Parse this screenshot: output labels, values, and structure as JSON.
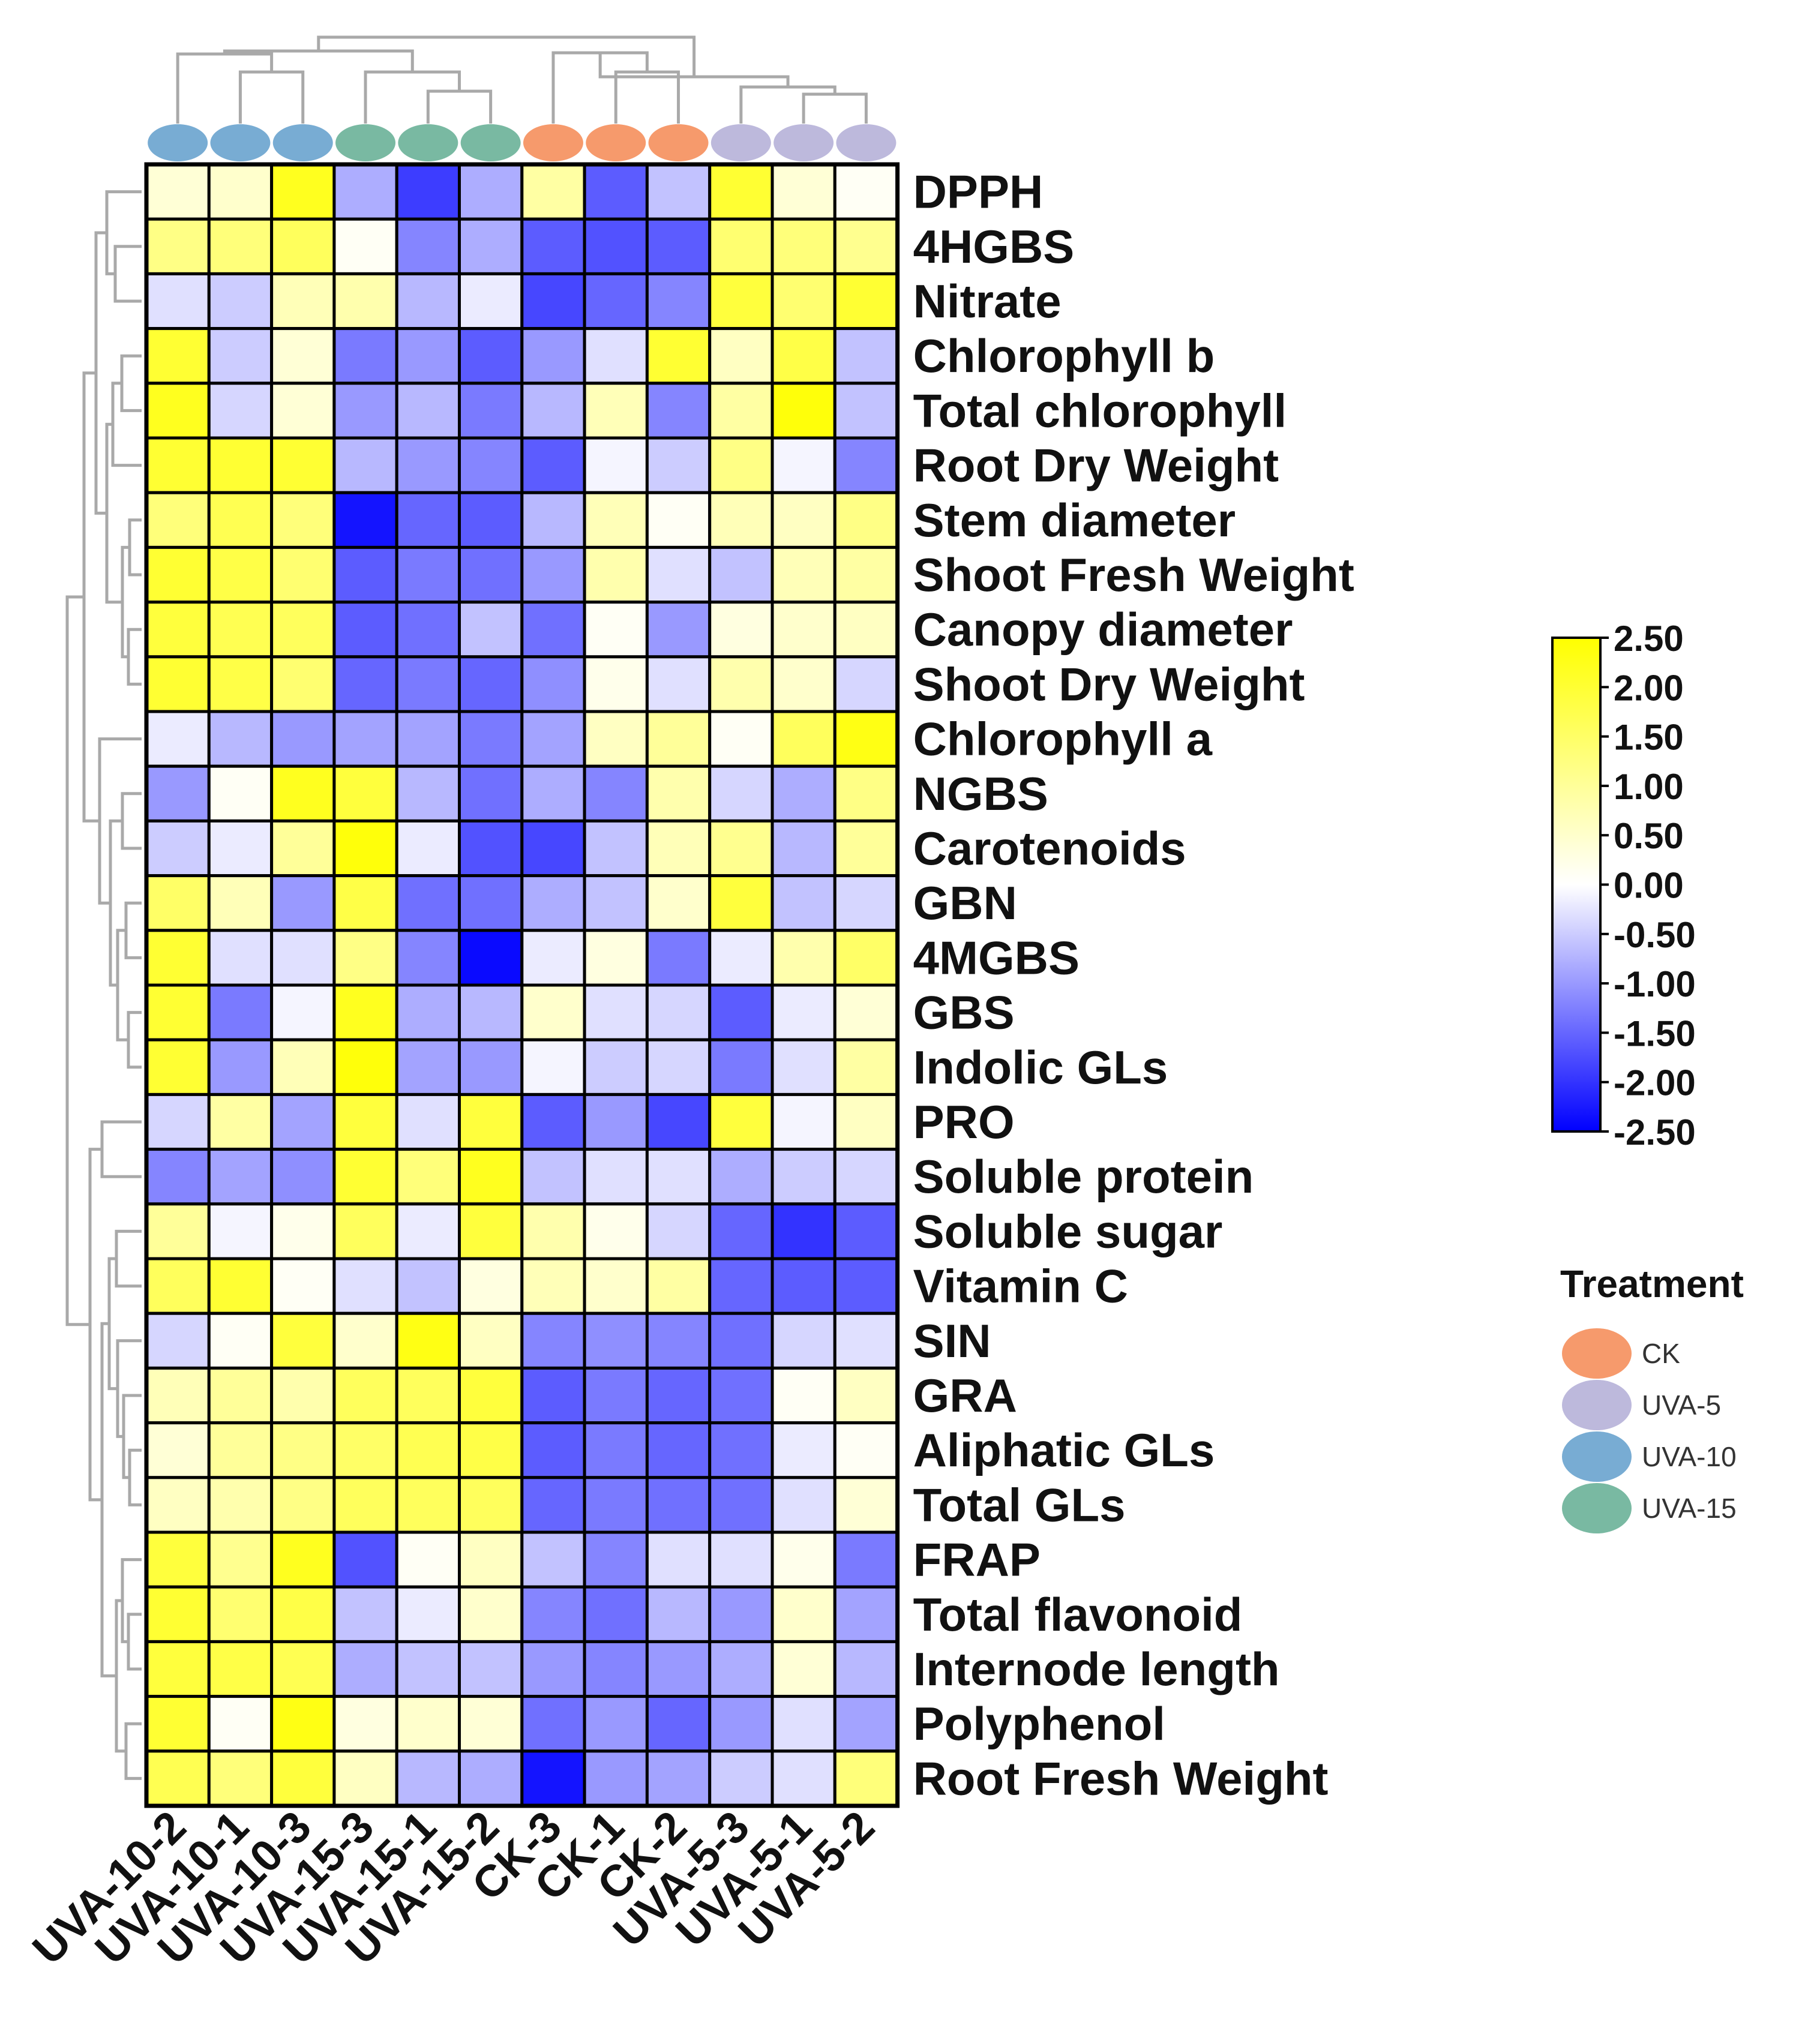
{
  "chart_data": {
    "type": "heatmap",
    "columns": [
      "UVA-10-2",
      "UVA-10-1",
      "UVA-10-3",
      "UVA-15-3",
      "UVA-15-1",
      "UVA-15-2",
      "CK-3",
      "CK-1",
      "CK-2",
      "UVA-5-3",
      "UVA-5-1",
      "UVA-5-2"
    ],
    "column_groups": [
      "UVA-10",
      "UVA-10",
      "UVA-10",
      "UVA-15",
      "UVA-15",
      "UVA-15",
      "CK",
      "CK",
      "CK",
      "UVA-5",
      "UVA-5",
      "UVA-5"
    ],
    "rows": [
      "DPPH",
      "4HGBS",
      "Nitrate",
      "Chlorophyll b",
      "Total chlorophyll",
      "Root Dry Weight",
      "Stem diameter",
      "Shoot Fresh Weight",
      "Canopy diameter",
      "Shoot Dry Weight",
      "Chlorophyll a",
      "NGBS",
      "Carotenoids",
      "GBN",
      "4MGBS",
      "GBS",
      "Indolic GLs",
      "PRO",
      "Soluble protein",
      "Soluble sugar",
      "Vitamin C",
      "SIN",
      "GRA",
      "Aliphatic GLs",
      "Total GLs",
      "FRAP",
      "Total flavonoid",
      "Internode length",
      "Polyphenol",
      "Root Fresh Weight"
    ],
    "values": [
      [
        0.4,
        0.5,
        2.2,
        -0.8,
        -1.9,
        -0.8,
        0.9,
        -1.6,
        -0.6,
        2.0,
        0.4,
        0.1
      ],
      [
        1.2,
        1.3,
        1.6,
        0.1,
        -1.2,
        -0.8,
        -1.6,
        -1.7,
        -1.6,
        1.4,
        1.3,
        1.1
      ],
      [
        -0.3,
        -0.5,
        0.7,
        0.8,
        -0.7,
        -0.2,
        -1.8,
        -1.5,
        -1.2,
        1.9,
        1.4,
        2.0
      ],
      [
        2.0,
        -0.5,
        0.4,
        -1.3,
        -1.0,
        -1.6,
        -1.0,
        -0.3,
        2.0,
        0.6,
        1.8,
        -0.6
      ],
      [
        2.2,
        -0.4,
        0.4,
        -1.0,
        -0.7,
        -1.3,
        -0.7,
        0.7,
        -1.2,
        0.9,
        2.4,
        -0.6
      ],
      [
        2.0,
        2.0,
        2.0,
        -0.7,
        -1.0,
        -1.2,
        -1.6,
        -0.1,
        -0.5,
        1.2,
        -0.1,
        -1.2
      ],
      [
        1.3,
        1.7,
        1.3,
        -2.3,
        -1.5,
        -1.6,
        -0.7,
        0.7,
        0.1,
        0.7,
        0.6,
        1.2
      ],
      [
        2.0,
        1.8,
        1.4,
        -1.6,
        -1.3,
        -1.4,
        -1.0,
        0.8,
        -0.3,
        -0.6,
        0.7,
        0.9
      ],
      [
        1.9,
        1.7,
        1.6,
        -1.6,
        -1.4,
        -0.6,
        -1.4,
        0.1,
        -1.0,
        0.3,
        0.5,
        0.6
      ],
      [
        2.0,
        1.8,
        1.4,
        -1.5,
        -1.3,
        -1.5,
        -1.1,
        0.2,
        -0.3,
        0.8,
        0.5,
        -0.4
      ],
      [
        -0.2,
        -0.7,
        -1.0,
        -0.9,
        -0.9,
        -1.3,
        -0.9,
        0.6,
        1.0,
        0.1,
        1.6,
        2.3
      ],
      [
        -1.0,
        0.1,
        2.2,
        1.9,
        -0.7,
        -1.4,
        -0.8,
        -1.2,
        0.8,
        -0.4,
        -0.8,
        1.2
      ],
      [
        -0.5,
        -0.2,
        1.0,
        2.4,
        -0.2,
        -1.7,
        -1.8,
        -0.6,
        0.7,
        1.1,
        -0.7,
        1.0
      ],
      [
        1.5,
        0.7,
        -1.0,
        1.8,
        -1.4,
        -1.4,
        -0.8,
        -0.6,
        0.5,
        1.9,
        -0.6,
        -0.4
      ],
      [
        2.0,
        -0.3,
        -0.3,
        1.2,
        -1.2,
        -2.4,
        -0.2,
        0.3,
        -1.3,
        -0.2,
        0.8,
        1.5
      ],
      [
        2.0,
        -1.3,
        -0.1,
        2.2,
        -0.8,
        -0.7,
        0.5,
        -0.3,
        -0.4,
        -1.6,
        -0.2,
        0.4
      ],
      [
        2.0,
        -1.0,
        0.7,
        2.4,
        -0.9,
        -1.0,
        -0.1,
        -0.5,
        -0.4,
        -1.3,
        -0.3,
        0.9
      ],
      [
        -0.4,
        0.9,
        -0.9,
        1.9,
        -0.3,
        1.9,
        -1.6,
        -1.0,
        -1.8,
        1.9,
        -0.1,
        0.6
      ],
      [
        -1.2,
        -0.9,
        -1.1,
        2.0,
        1.3,
        2.2,
        -0.6,
        -0.3,
        -0.3,
        -0.8,
        -0.5,
        -0.4
      ],
      [
        1.0,
        -0.1,
        0.2,
        1.6,
        -0.2,
        1.9,
        0.8,
        0.2,
        -0.4,
        -1.5,
        -2.0,
        -1.6
      ],
      [
        1.6,
        2.0,
        0.1,
        -0.3,
        -0.6,
        0.3,
        0.7,
        0.5,
        0.9,
        -1.5,
        -1.6,
        -1.6
      ],
      [
        -0.4,
        0.1,
        1.9,
        0.5,
        2.3,
        0.6,
        -1.2,
        -1.1,
        -1.2,
        -1.4,
        -0.4,
        -0.3
      ],
      [
        0.7,
        1.0,
        0.8,
        1.6,
        1.6,
        1.9,
        -1.6,
        -1.3,
        -1.5,
        -1.4,
        0.1,
        0.6
      ],
      [
        0.4,
        1.0,
        1.2,
        1.5,
        1.7,
        1.8,
        -1.6,
        -1.3,
        -1.5,
        -1.4,
        -0.2,
        0.1
      ],
      [
        0.6,
        0.8,
        1.2,
        1.6,
        1.6,
        1.6,
        -1.5,
        -1.3,
        -1.4,
        -1.4,
        -0.3,
        0.4
      ],
      [
        1.9,
        1.1,
        2.2,
        -1.7,
        0.1,
        0.6,
        -0.6,
        -1.2,
        -0.3,
        -0.3,
        0.2,
        -1.3
      ],
      [
        2.0,
        1.4,
        1.8,
        -0.6,
        -0.2,
        0.5,
        -1.2,
        -1.4,
        -0.7,
        -1.0,
        0.5,
        -0.9
      ],
      [
        1.9,
        1.8,
        1.7,
        -0.8,
        -0.6,
        -0.6,
        -1.0,
        -1.2,
        -1.0,
        -0.8,
        0.4,
        -0.7
      ],
      [
        2.0,
        0.1,
        2.3,
        0.3,
        0.5,
        0.4,
        -1.4,
        -1.0,
        -1.5,
        -1.0,
        -0.3,
        -0.9
      ],
      [
        1.7,
        1.3,
        1.9,
        0.6,
        -0.7,
        -0.8,
        -2.3,
        -1.0,
        -0.9,
        -0.5,
        -0.3,
        1.3
      ]
    ],
    "colorscale": {
      "min": -2.5,
      "max": 2.5,
      "low_color": "#0000ff",
      "mid_color": "#ffffff",
      "high_color": "#ffff00",
      "ticks": [
        "2.50",
        "2.00",
        "1.50",
        "1.00",
        "0.50",
        "0.00",
        "-0.50",
        "-1.00",
        "-1.50",
        "-2.00",
        "-2.50"
      ]
    },
    "legend": {
      "title": "Treatment",
      "placement": "right",
      "items": [
        {
          "label": "CK",
          "color": "#f69a6c"
        },
        {
          "label": "UVA-5",
          "color": "#bdb9dc"
        },
        {
          "label": "UVA-10",
          "color": "#78acd3"
        },
        {
          "label": "UVA-15",
          "color": "#79b9a2"
        }
      ]
    },
    "row_dendrogram": true,
    "column_dendrogram": true
  }
}
